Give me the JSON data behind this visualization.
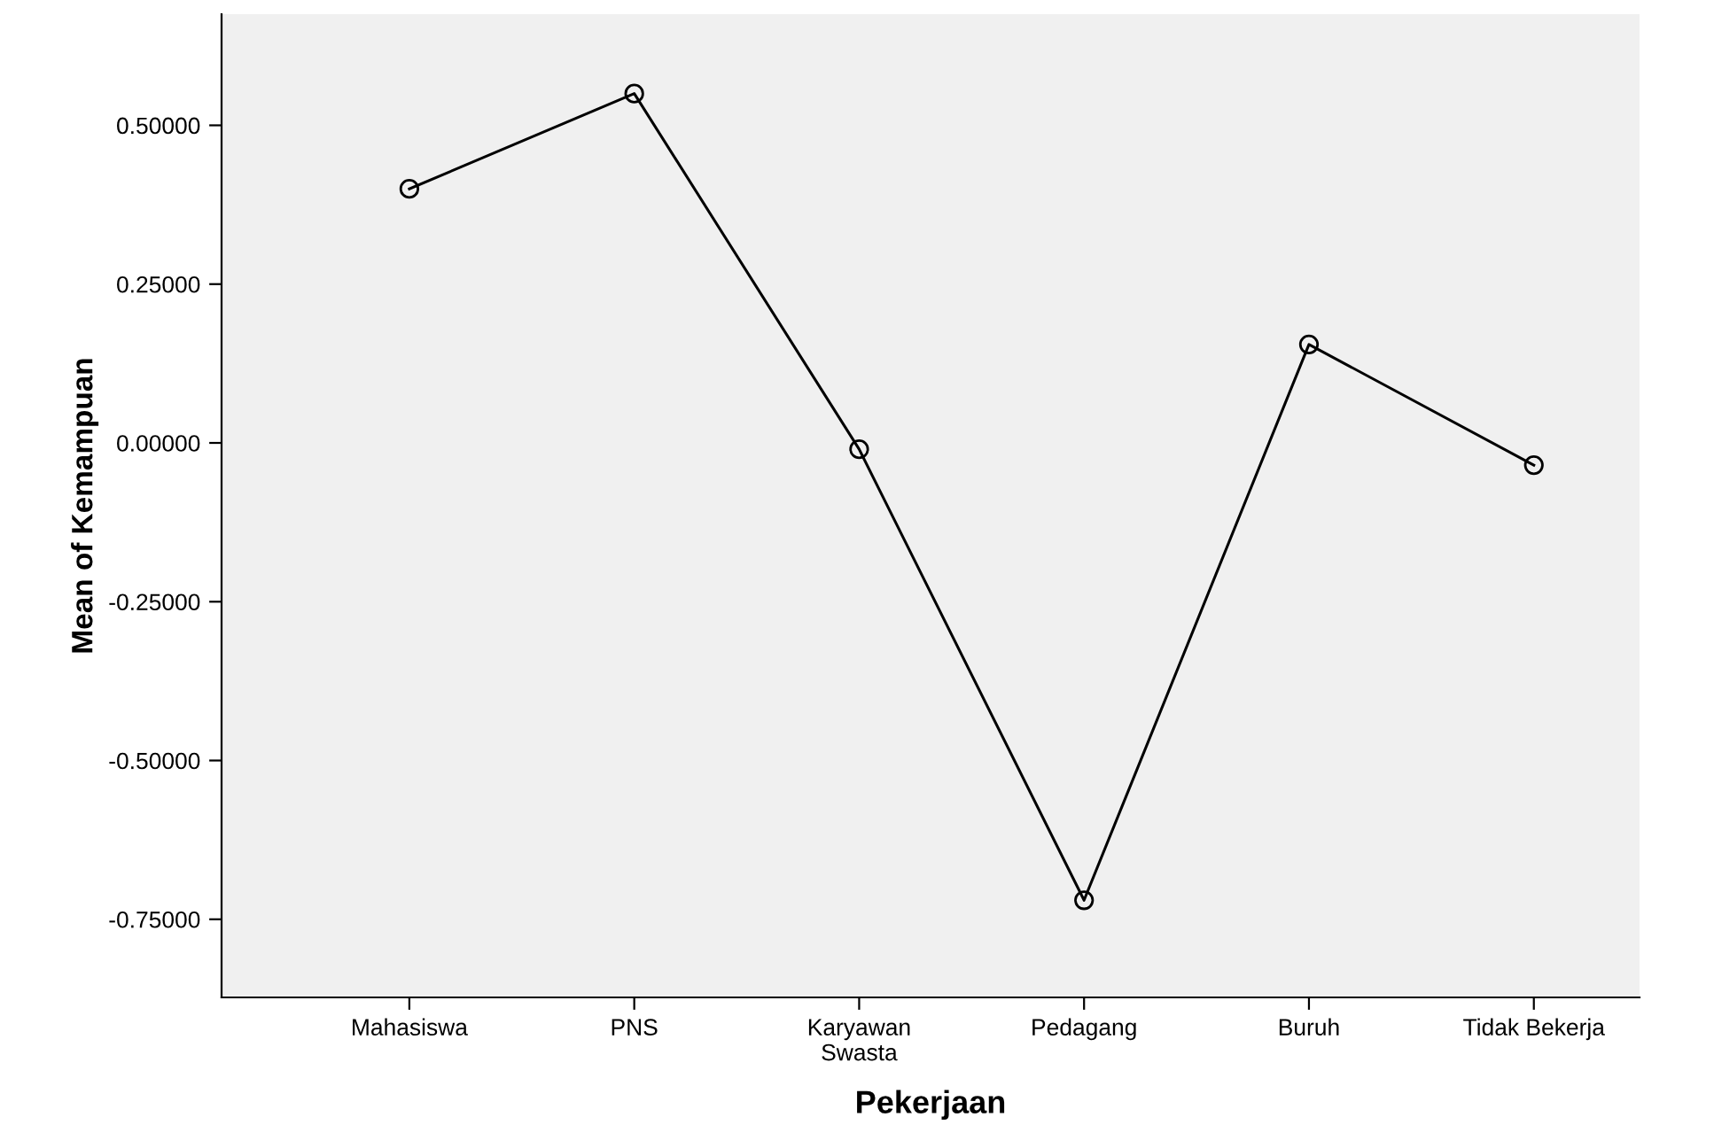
{
  "chart_data": {
    "type": "line",
    "xlabel": "Pekerjaan",
    "ylabel": "Mean of Kemampuan",
    "categories": [
      "Mahasiswa",
      "PNS",
      "Karyawan\nSwasta",
      "Pedagang",
      "Buruh",
      "Tidak Bekerja"
    ],
    "series": [
      {
        "color": "#000000",
        "values": [
          0.4,
          0.55,
          -0.01,
          -0.72,
          0.155,
          -0.035
        ]
      }
    ],
    "ylim": [
      -0.873,
      0.675
    ],
    "yticks": [
      {
        "value": -0.75,
        "label": "-0.75000"
      },
      {
        "value": -0.5,
        "label": "-0.50000"
      },
      {
        "value": -0.25,
        "label": "-0.25000"
      },
      {
        "value": 0,
        "label": "0.00000"
      },
      {
        "value": 0.25,
        "label": "0.25000"
      },
      {
        "value": 0.5,
        "label": "0.50000"
      }
    ],
    "grid": false,
    "legend": false,
    "marker": "circle",
    "line_style": "solid"
  }
}
